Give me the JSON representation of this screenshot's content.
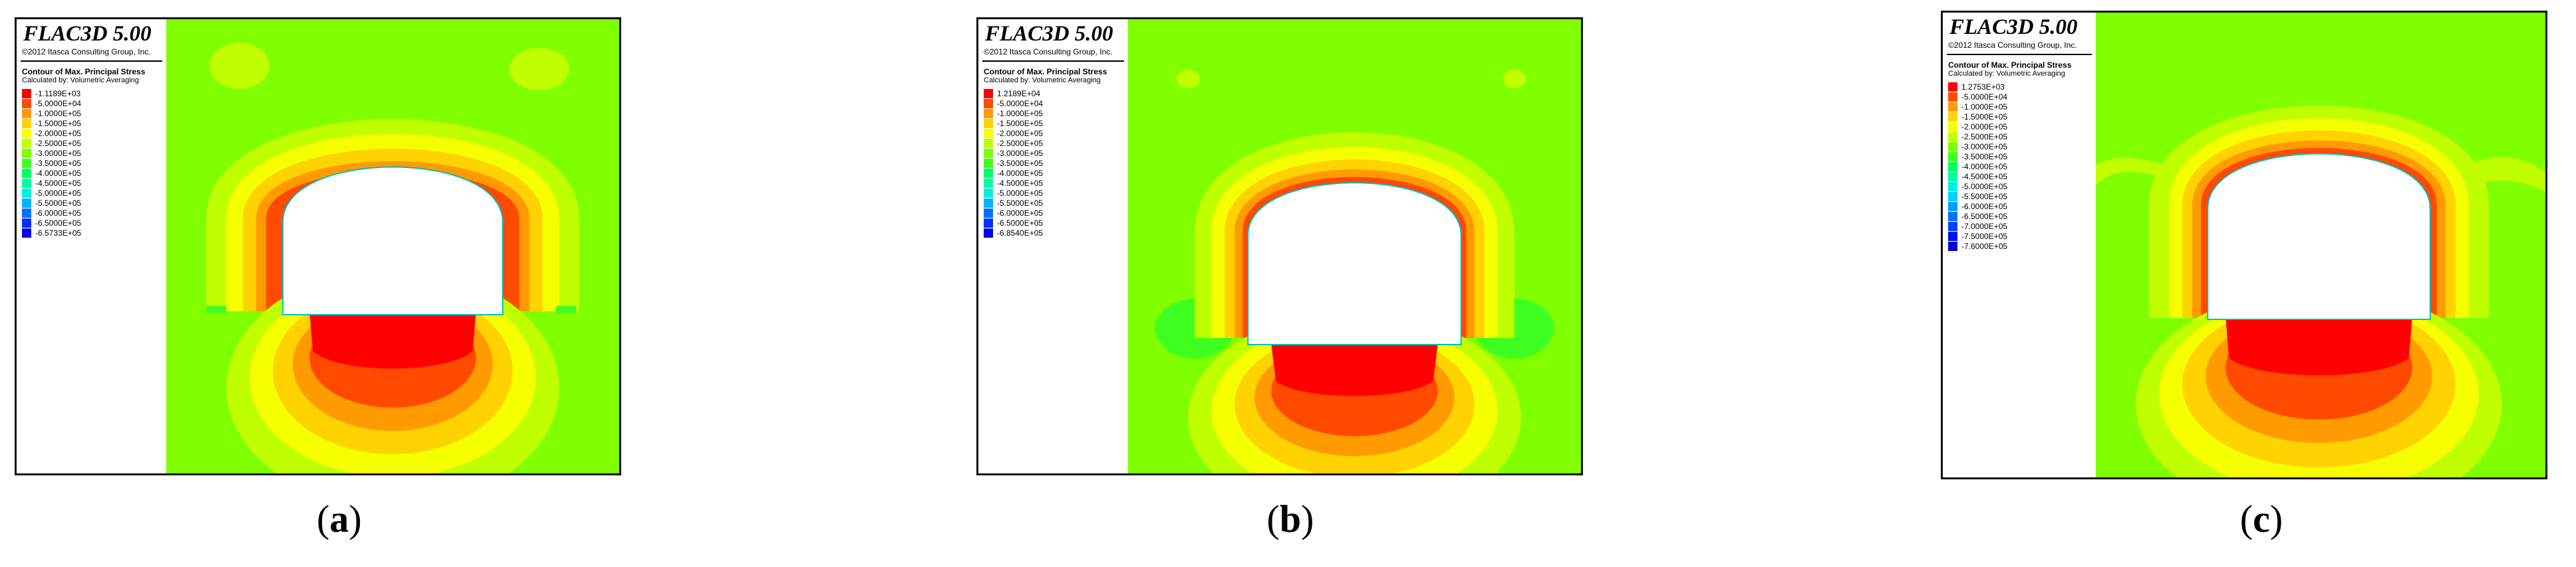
{
  "panels": [
    {
      "id": "a",
      "caption_open": "(",
      "caption_letter": "a",
      "caption_close": ")",
      "title": "FLAC3D 5.00",
      "copyright": "©2012 Itasca Consulting Group, Inc.",
      "contour_title": "Contour of Max. Principal Stress",
      "calc_note": "Calculated by: Volumetric Averaging",
      "legend": [
        {
          "label": "-1.1189E+03",
          "color": "#ff0000"
        },
        {
          "label": "-5.0000E+04",
          "color": "#ff4a00"
        },
        {
          "label": "-1.0000E+05",
          "color": "#ff9a00"
        },
        {
          "label": "-1.5000E+05",
          "color": "#ffd200"
        },
        {
          "label": "-2.0000E+05",
          "color": "#f5ff00"
        },
        {
          "label": "-2.5000E+05",
          "color": "#bfff00"
        },
        {
          "label": "-3.0000E+05",
          "color": "#7fff00"
        },
        {
          "label": "-3.5000E+05",
          "color": "#3fff20"
        },
        {
          "label": "-4.0000E+05",
          "color": "#00ff60"
        },
        {
          "label": "-4.5000E+05",
          "color": "#00ffa0"
        },
        {
          "label": "-5.0000E+05",
          "color": "#00f0e0"
        },
        {
          "label": "-5.5000E+05",
          "color": "#00b4ff"
        },
        {
          "label": "-6.0000E+05",
          "color": "#0070ff"
        },
        {
          "label": "-6.5000E+05",
          "color": "#0030ff"
        },
        {
          "label": "-6.5733E+05",
          "color": "#0000e0"
        }
      ]
    },
    {
      "id": "b",
      "caption_open": "(",
      "caption_letter": "b",
      "caption_close": ")",
      "title": "FLAC3D 5.00",
      "copyright": "©2012 Itasca Consulting Group, Inc.",
      "contour_title": "Contour of Max. Principal Stress",
      "calc_note": "Calculated by: Volumetric Averaging",
      "legend": [
        {
          "label": "1.2189E+04",
          "color": "#ff0000"
        },
        {
          "label": "-5.0000E+04",
          "color": "#ff4a00"
        },
        {
          "label": "-1.0000E+05",
          "color": "#ff9a00"
        },
        {
          "label": "-1.5000E+05",
          "color": "#ffd200"
        },
        {
          "label": "-2.0000E+05",
          "color": "#f5ff00"
        },
        {
          "label": "-2.5000E+05",
          "color": "#bfff00"
        },
        {
          "label": "-3.0000E+05",
          "color": "#7fff00"
        },
        {
          "label": "-3.5000E+05",
          "color": "#3fff20"
        },
        {
          "label": "-4.0000E+05",
          "color": "#00ff60"
        },
        {
          "label": "-4.5000E+05",
          "color": "#00ffa0"
        },
        {
          "label": "-5.0000E+05",
          "color": "#00f0e0"
        },
        {
          "label": "-5.5000E+05",
          "color": "#00b4ff"
        },
        {
          "label": "-6.0000E+05",
          "color": "#0070ff"
        },
        {
          "label": "-6.5000E+05",
          "color": "#0030ff"
        },
        {
          "label": "-6.8540E+05",
          "color": "#0000e0"
        }
      ]
    },
    {
      "id": "c",
      "caption_open": "(",
      "caption_letter": "c",
      "caption_close": ")",
      "title": "FLAC3D 5.00",
      "copyright": "©2012 Itasca Consulting Group, Inc.",
      "contour_title": "Contour of Max. Principal Stress",
      "calc_note": "Calculated by: Volumetric Averaging",
      "legend": [
        {
          "label": "1.2753E+03",
          "color": "#ff0000"
        },
        {
          "label": "-5.0000E+04",
          "color": "#ff4a00"
        },
        {
          "label": "-1.0000E+05",
          "color": "#ff9a00"
        },
        {
          "label": "-1.5000E+05",
          "color": "#ffd200"
        },
        {
          "label": "-2.0000E+05",
          "color": "#f5ff00"
        },
        {
          "label": "-2.5000E+05",
          "color": "#bfff00"
        },
        {
          "label": "-3.0000E+05",
          "color": "#7fff00"
        },
        {
          "label": "-3.5000E+05",
          "color": "#3fff20"
        },
        {
          "label": "-4.0000E+05",
          "color": "#00ff60"
        },
        {
          "label": "-4.5000E+05",
          "color": "#00ffa0"
        },
        {
          "label": "-5.0000E+05",
          "color": "#00f0e0"
        },
        {
          "label": "-5.5000E+05",
          "color": "#00d0ff"
        },
        {
          "label": "-6.0000E+05",
          "color": "#00a0ff"
        },
        {
          "label": "-6.5000E+05",
          "color": "#0070ff"
        },
        {
          "label": "-7.0000E+05",
          "color": "#0040ff"
        },
        {
          "label": "-7.5000E+05",
          "color": "#0010f0"
        },
        {
          "label": "-7.6000E+05",
          "color": "#0000d0"
        }
      ]
    }
  ]
}
